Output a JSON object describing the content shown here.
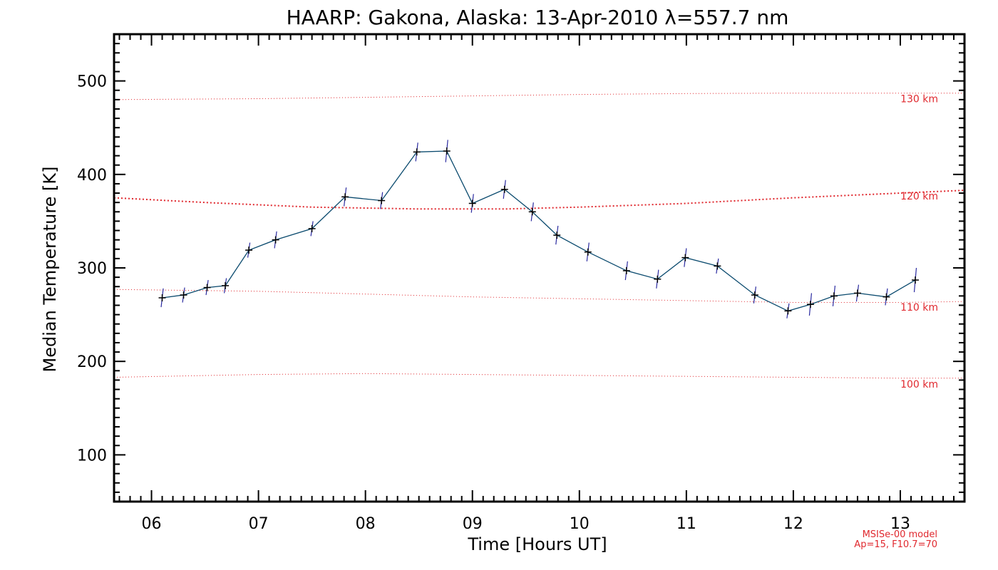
{
  "chart_data": {
    "type": "line",
    "title": "HAARP: Gakona,  Alaska: 13-Apr-2010 λ=557.7 nm",
    "xlabel": "Time [Hours UT]",
    "ylabel": "Median Temperature [K]",
    "xlim": [
      5.65,
      13.6
    ],
    "ylim": [
      50,
      550
    ],
    "x_ticks": [
      6,
      7,
      8,
      9,
      10,
      11,
      12,
      13
    ],
    "x_tick_labels": [
      "06",
      "07",
      "08",
      "09",
      "10",
      "11",
      "12",
      "13"
    ],
    "y_ticks": [
      100,
      200,
      300,
      400,
      500
    ],
    "y_tick_labels": [
      "100",
      "200",
      "300",
      "400",
      "500"
    ],
    "grid": false,
    "series": [
      {
        "x": [
          6.1,
          6.3,
          6.52,
          6.69,
          6.91,
          7.16,
          7.5,
          7.81,
          8.15,
          8.48,
          8.76,
          9.0,
          9.3,
          9.56,
          9.79,
          10.08,
          10.44,
          10.73,
          10.99,
          11.29,
          11.64,
          11.95,
          12.16,
          12.38,
          12.6,
          12.87,
          13.14
        ],
        "y": [
          268,
          271,
          279,
          281,
          319,
          330,
          342,
          376,
          372,
          424,
          425,
          369,
          384,
          360,
          335,
          317,
          297,
          288,
          311,
          302,
          271,
          254,
          261,
          270,
          273,
          269,
          287
        ],
        "err": [
          10,
          8,
          8,
          8,
          8,
          9,
          8,
          10,
          9,
          10,
          12,
          10,
          10,
          10,
          10,
          10,
          10,
          10,
          10,
          8,
          9,
          8,
          12,
          11,
          9,
          9,
          13
        ],
        "color": "#0a4a6e",
        "errcolor": "#2a2aa0"
      }
    ],
    "model_curves": {
      "color": "#e0282e",
      "curves": [
        {
          "label": "130 km",
          "x": [
            5.65,
            7,
            8,
            9,
            10,
            11,
            12,
            13,
            13.6
          ],
          "y": [
            480,
            481,
            482.5,
            484,
            485.5,
            486.5,
            487,
            487,
            487
          ]
        },
        {
          "label": "120 km",
          "x": [
            5.65,
            6.5,
            7.5,
            8.5,
            9.3,
            10,
            11,
            12,
            13,
            13.6
          ],
          "y": [
            375,
            370,
            365,
            363,
            363,
            365,
            369,
            375,
            380,
            383
          ]
        },
        {
          "label": "110 km",
          "x": [
            5.65,
            7,
            8,
            9,
            10,
            11,
            12,
            13,
            13.6
          ],
          "y": [
            277,
            275,
            272,
            269,
            267,
            265,
            263,
            263,
            264
          ]
        },
        {
          "label": "100 km",
          "x": [
            5.65,
            7,
            8,
            9,
            10,
            11,
            12,
            13,
            13.6
          ],
          "y": [
            183,
            186,
            187,
            186,
            185,
            184,
            183,
            182,
            182
          ]
        }
      ]
    },
    "annotations": [
      "MSISe-00 model",
      "Ap=15, F10.7=70"
    ]
  }
}
